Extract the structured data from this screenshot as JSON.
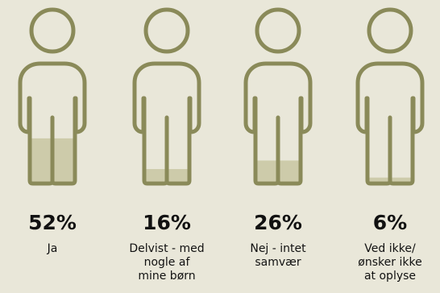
{
  "chart_data": {
    "type": "pictograph",
    "categories": [
      "Ja",
      "Delvist - med nogle af mine børn",
      "Nej - intet samvær",
      "Ved ikke/ ønsker ikke at oplyse"
    ],
    "values": [
      52,
      16,
      26,
      6
    ],
    "value_labels": [
      "52%",
      "16%",
      "26%",
      "6%"
    ],
    "label_lines": [
      [
        "Ja"
      ],
      [
        "Delvist - med",
        "nogle af",
        "mine børn"
      ],
      [
        "Nej - intet",
        "samvær"
      ],
      [
        "Ved ikke/",
        "ønsker ikke",
        "at oplyse"
      ]
    ],
    "ylim": [
      0,
      100
    ]
  },
  "colors": {
    "background": "#e9e7d9",
    "outline": "#8a8a59",
    "fill": "#cdcbaa",
    "text": "#111111"
  }
}
